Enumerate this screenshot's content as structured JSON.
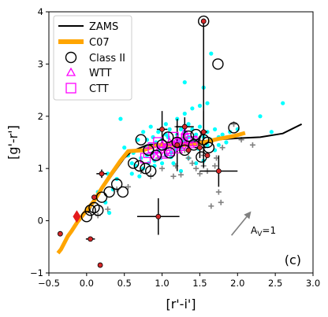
{
  "chart_data": {
    "type": "scatter",
    "xlabel": "[r'-i']",
    "ylabel": "[g'-r']",
    "panel_label": "(c)",
    "xlim": [
      -0.5,
      3.0
    ],
    "ylim": [
      -1,
      4
    ],
    "xticks": [
      -0.5,
      0.0,
      0.5,
      1.0,
      1.5,
      2.0,
      2.5,
      3.0
    ],
    "xtick_labels": [
      "−0.5",
      "0.0",
      "0.5",
      "1.0",
      "1.5",
      "2.0",
      "2.5",
      "3.0"
    ],
    "yticks": [
      -1,
      0,
      1,
      2,
      3,
      4
    ],
    "ytick_labels": [
      "−1",
      "0",
      "1",
      "2",
      "3",
      "4"
    ],
    "legend_position": "top-left",
    "legend": [
      {
        "label": "ZAMS",
        "marker": "line",
        "color": "#000000"
      },
      {
        "label": "C07",
        "marker": "thick-line",
        "color": "#ffa500"
      },
      {
        "label": "Class II",
        "marker": "open-circle",
        "color": "#000000"
      },
      {
        "label": "WTT",
        "marker": "open-triangle",
        "color": "#ff00ff"
      },
      {
        "label": "CTT",
        "marker": "open-square",
        "color": "#ff00ff"
      }
    ],
    "reddening_vector": {
      "label": "A",
      "label_sub": "V",
      "label_suffix": "=1",
      "from": [
        1.92,
        -0.28
      ],
      "to": [
        2.18,
        0.18
      ],
      "color": "#808080"
    },
    "zams": [
      [
        0.02,
        0.15
      ],
      [
        0.1,
        0.4
      ],
      [
        0.25,
        0.7
      ],
      [
        0.4,
        1.0
      ],
      [
        0.5,
        1.2
      ],
      [
        0.6,
        1.33
      ],
      [
        0.8,
        1.45
      ],
      [
        1.0,
        1.47
      ],
      [
        1.2,
        1.48
      ],
      [
        1.5,
        1.52
      ],
      [
        1.8,
        1.56
      ],
      [
        2.0,
        1.58
      ],
      [
        2.3,
        1.6
      ],
      [
        2.6,
        1.67
      ],
      [
        2.85,
        1.85
      ]
    ],
    "c07": [
      [
        -0.38,
        -0.62
      ],
      [
        -0.34,
        -0.55
      ],
      [
        -0.3,
        -0.44
      ],
      [
        -0.25,
        -0.3
      ],
      [
        -0.2,
        -0.2
      ],
      [
        -0.12,
        -0.02
      ],
      [
        0.0,
        0.2
      ],
      [
        0.1,
        0.38
      ],
      [
        0.2,
        0.62
      ],
      [
        0.32,
        0.88
      ],
      [
        0.45,
        1.15
      ],
      [
        0.55,
        1.33
      ],
      [
        0.75,
        1.35
      ],
      [
        0.95,
        1.45
      ],
      [
        1.15,
        1.45
      ],
      [
        1.35,
        1.45
      ],
      [
        1.55,
        1.5
      ],
      [
        1.75,
        1.57
      ],
      [
        1.95,
        1.62
      ],
      [
        2.1,
        1.68
      ]
    ],
    "cyan_points": [
      [
        0.55,
        1.25
      ],
      [
        0.6,
        1.1
      ],
      [
        0.62,
        1.3
      ],
      [
        0.65,
        1.05
      ],
      [
        0.7,
        1.35
      ],
      [
        0.72,
        1.2
      ],
      [
        0.75,
        1.0
      ],
      [
        0.78,
        1.4
      ],
      [
        0.8,
        1.25
      ],
      [
        0.82,
        1.1
      ],
      [
        0.85,
        1.45
      ],
      [
        0.88,
        1.3
      ],
      [
        0.9,
        1.15
      ],
      [
        0.92,
        1.5
      ],
      [
        0.95,
        1.35
      ],
      [
        0.98,
        1.2
      ],
      [
        1.0,
        1.55
      ],
      [
        1.02,
        1.4
      ],
      [
        1.05,
        1.25
      ],
      [
        1.08,
        1.6
      ],
      [
        1.1,
        1.45
      ],
      [
        1.12,
        1.3
      ],
      [
        1.15,
        1.5
      ],
      [
        1.18,
        1.35
      ],
      [
        1.2,
        1.65
      ],
      [
        1.22,
        1.5
      ],
      [
        1.25,
        1.4
      ],
      [
        1.28,
        1.55
      ],
      [
        1.3,
        1.7
      ],
      [
        1.32,
        1.45
      ],
      [
        1.35,
        1.6
      ],
      [
        1.38,
        1.5
      ],
      [
        1.4,
        1.75
      ],
      [
        1.42,
        1.55
      ],
      [
        1.45,
        1.65
      ],
      [
        1.48,
        1.5
      ],
      [
        1.5,
        1.8
      ],
      [
        1.55,
        1.6
      ],
      [
        1.6,
        1.7
      ],
      [
        1.65,
        1.55
      ],
      [
        1.7,
        1.75
      ],
      [
        1.75,
        1.6
      ],
      [
        1.8,
        1.65
      ],
      [
        1.9,
        1.7
      ],
      [
        2.0,
        1.75
      ],
      [
        0.5,
        1.4
      ],
      [
        0.95,
        1.7
      ],
      [
        1.05,
        1.85
      ],
      [
        1.2,
        1.95
      ],
      [
        1.3,
        2.05
      ],
      [
        1.4,
        2.15
      ],
      [
        1.5,
        2.2
      ],
      [
        1.6,
        2.25
      ],
      [
        1.3,
        2.65
      ],
      [
        1.55,
        2.55
      ],
      [
        1.65,
        3.2
      ],
      [
        2.3,
        2.0
      ],
      [
        2.45,
        1.7
      ],
      [
        2.6,
        2.25
      ],
      [
        0.45,
        1.95
      ],
      [
        0.68,
        1.55
      ],
      [
        0.75,
        1.7
      ],
      [
        0.85,
        1.8
      ],
      [
        0.15,
        0.55
      ],
      [
        0.25,
        0.35
      ],
      [
        0.35,
        0.6
      ],
      [
        0.4,
        0.8
      ],
      [
        0.3,
        0.15
      ],
      [
        0.28,
        0.9
      ],
      [
        0.6,
        0.9
      ],
      [
        0.7,
        0.85
      ],
      [
        1.35,
        1.2
      ],
      [
        1.45,
        1.1
      ],
      [
        1.55,
        1.15
      ],
      [
        1.15,
        1.1
      ],
      [
        1.25,
        0.95
      ],
      [
        0.8,
        1.55
      ],
      [
        0.88,
        1.6
      ],
      [
        1.05,
        1.65
      ],
      [
        1.1,
        1.75
      ],
      [
        1.7,
        1.35
      ],
      [
        1.75,
        1.45
      ],
      [
        1.85,
        1.5
      ],
      [
        1.12,
        1.22
      ],
      [
        1.48,
        1.38
      ],
      [
        0.9,
        1.05
      ],
      [
        1.0,
        1.1
      ],
      [
        1.6,
        1.45
      ],
      [
        1.25,
        1.75
      ],
      [
        1.35,
        1.85
      ]
    ],
    "grey_plus": [
      [
        0.15,
        0.1
      ],
      [
        0.28,
        0.22
      ],
      [
        0.4,
        0.6
      ],
      [
        0.55,
        0.65
      ],
      [
        0.72,
        0.95
      ],
      [
        0.85,
        0.85
      ],
      [
        1.15,
        0.85
      ],
      [
        1.25,
        0.88
      ],
      [
        1.3,
        1.35
      ],
      [
        1.35,
        1.2
      ],
      [
        1.4,
        1.1
      ],
      [
        1.45,
        1.0
      ],
      [
        1.5,
        0.9
      ],
      [
        1.55,
        1.05
      ],
      [
        1.6,
        0.95
      ],
      [
        1.72,
        1.2
      ],
      [
        1.75,
        0.55
      ],
      [
        1.65,
        0.28
      ],
      [
        1.78,
        0.35
      ],
      [
        1.7,
        1.05
      ],
      [
        1.8,
        1.4
      ],
      [
        1.95,
        1.85
      ],
      [
        2.05,
        1.55
      ],
      [
        2.2,
        1.45
      ],
      [
        1.3,
        1.6
      ],
      [
        1.2,
        1.8
      ],
      [
        1.55,
        1.25
      ],
      [
        0.95,
        1.2
      ],
      [
        1.0,
        1.0
      ],
      [
        1.18,
        1.05
      ]
    ],
    "wtt": [
      [
        0.95,
        1.35
      ],
      [
        1.0,
        1.45
      ],
      [
        1.05,
        1.4
      ],
      [
        1.1,
        1.5
      ],
      [
        1.15,
        1.45
      ],
      [
        1.2,
        1.55
      ],
      [
        1.25,
        1.4
      ],
      [
        1.28,
        1.6
      ],
      [
        1.32,
        1.5
      ],
      [
        1.38,
        1.45
      ],
      [
        1.02,
        1.25
      ],
      [
        1.12,
        1.3
      ],
      [
        1.22,
        1.35
      ],
      [
        0.92,
        1.22
      ],
      [
        1.3,
        1.7
      ],
      [
        1.45,
        1.55
      ]
    ],
    "ctt": [
      [
        0.82,
        1.3
      ],
      [
        0.88,
        1.4
      ],
      [
        0.95,
        1.5
      ],
      [
        1.0,
        1.32
      ],
      [
        1.1,
        1.38
      ],
      [
        1.15,
        1.6
      ],
      [
        1.25,
        1.48
      ],
      [
        1.32,
        1.58
      ],
      [
        1.4,
        1.52
      ],
      [
        0.78,
        1.2
      ]
    ],
    "class2": [
      [
        0.0,
        0.08
      ],
      [
        0.05,
        0.2
      ],
      [
        0.1,
        0.25
      ],
      [
        0.15,
        0.2
      ],
      [
        0.2,
        0.45
      ],
      [
        0.3,
        0.55
      ],
      [
        0.4,
        0.7
      ],
      [
        0.48,
        0.55
      ],
      [
        0.62,
        1.1
      ],
      [
        0.7,
        1.05
      ],
      [
        0.78,
        1.0
      ],
      [
        0.85,
        0.95
      ],
      [
        0.92,
        1.25
      ],
      [
        1.0,
        1.45
      ],
      [
        1.08,
        1.6
      ],
      [
        1.2,
        1.5
      ],
      [
        1.3,
        1.35
      ],
      [
        1.45,
        1.65
      ],
      [
        1.55,
        1.55
      ],
      [
        1.6,
        1.5
      ],
      [
        1.62,
        1.4
      ],
      [
        1.52,
        1.22
      ],
      [
        1.42,
        1.45
      ],
      [
        1.35,
        1.62
      ],
      [
        1.1,
        1.3
      ],
      [
        1.95,
        1.78
      ],
      [
        1.74,
        3.0
      ],
      [
        1.55,
        3.82
      ],
      [
        0.72,
        1.55
      ],
      [
        0.82,
        1.35
      ]
    ],
    "red_points": [
      [
        1.55,
        3.82
      ],
      [
        0.05,
        -0.35
      ],
      [
        0.1,
        0.45
      ],
      [
        0.2,
        0.9
      ],
      [
        -0.35,
        -0.25
      ],
      [
        0.18,
        -0.85
      ],
      [
        0.95,
        0.08
      ],
      [
        1.75,
        0.95
      ],
      [
        1.3,
        1.8
      ],
      [
        1.2,
        1.45
      ],
      [
        1.0,
        1.75
      ],
      [
        1.5,
        1.4
      ],
      [
        1.35,
        1.35
      ],
      [
        1.55,
        1.7
      ],
      [
        1.6,
        1.25
      ]
    ],
    "red_diamond": [
      -0.13,
      0.08
    ],
    "errorbars": [
      {
        "x": 1.55,
        "y": 3.82,
        "xerr": 0.0,
        "yerr_low": 2.8,
        "yerr_high": 0.0
      },
      {
        "x": 0.95,
        "y": 0.08,
        "xerr": 0.28,
        "yerr": 0.35
      },
      {
        "x": 1.75,
        "y": 0.95,
        "xerr": 0.25,
        "yerr": 0.3
      },
      {
        "x": 0.2,
        "y": 0.9,
        "xerr": 0.07,
        "yerr": 0.08
      },
      {
        "x": 0.05,
        "y": -0.35,
        "xerr": 0.06,
        "yerr": 0.03
      },
      {
        "x": 1.3,
        "y": 1.8,
        "xerr": 0.12,
        "yerr": 0.18
      },
      {
        "x": 1.0,
        "y": 1.75,
        "xerr": 0.07,
        "yerr": 0.35
      },
      {
        "x": 1.2,
        "y": 1.45,
        "xerr": 0.1,
        "yerr": 0.5
      },
      {
        "x": 1.55,
        "y": 1.7,
        "xerr": 0.05,
        "yerr": 0.4
      },
      {
        "x": 1.5,
        "y": 1.4,
        "xerr": 0.08,
        "yerr": 0.2
      }
    ]
  }
}
